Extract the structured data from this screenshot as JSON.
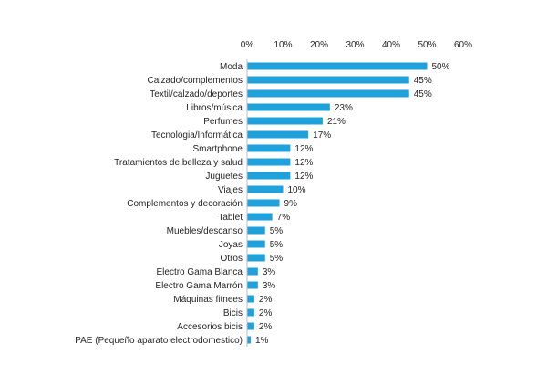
{
  "chart_data": {
    "type": "bar",
    "orientation": "horizontal",
    "title": "",
    "xlabel": "",
    "ylabel": "",
    "xlim": [
      0,
      60
    ],
    "x_ticks": [
      "0%",
      "10%",
      "20%",
      "30%",
      "40%",
      "50%",
      "60%"
    ],
    "x_axis_position": "top",
    "grid": false,
    "legend": "none",
    "bar_color": "#1fa2dc",
    "categories": [
      "Moda",
      "Calzado/complementos",
      "Textil/calzado/deportes",
      "Libros/música",
      "Perfumes",
      "Tecnologia/Informática",
      "Smartphone",
      "Tratamientos de belleza y salud",
      "Juguetes",
      "Viajes",
      "Complementos y decoración",
      "Tablet",
      "Muebles/descanso",
      "Joyas",
      "Otros",
      "Electro Gama Blanca",
      "Electro Gama Marrón",
      "Máquinas fitnees",
      "Bicis",
      "Accesorios bicis",
      "PAE (Pequeño aparato electrodomestico)"
    ],
    "values": [
      50,
      45,
      45,
      23,
      21,
      17,
      12,
      12,
      12,
      10,
      9,
      7,
      5,
      5,
      5,
      3,
      3,
      2,
      2,
      2,
      1
    ],
    "value_labels": [
      "50%",
      "45%",
      "45%",
      "23%",
      "21%",
      "17%",
      "12%",
      "12%",
      "12%",
      "10%",
      "9%",
      "7%",
      "5%",
      "5%",
      "5%",
      "3%",
      "3%",
      "2%",
      "2%",
      "2%",
      "1%"
    ]
  }
}
